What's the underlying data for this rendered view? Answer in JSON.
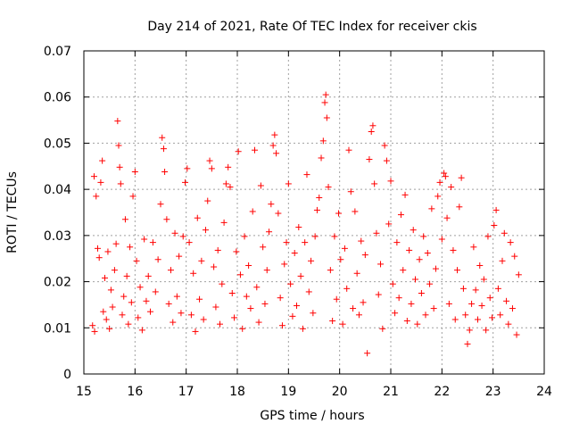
{
  "chart_data": {
    "type": "scatter",
    "title": "Day 214 of 2021, Rate Of TEC Index for receiver ckis",
    "xlabel": "GPS time / hours",
    "ylabel": "ROTI / TECUs",
    "xlim": [
      15,
      24
    ],
    "ylim": [
      0,
      0.07
    ],
    "xticks": [
      "15",
      "16",
      "17",
      "18",
      "19",
      "20",
      "21",
      "22",
      "23",
      "24"
    ],
    "yticks": [
      "0",
      "0.01",
      "0.02",
      "0.03",
      "0.04",
      "0.05",
      "0.06",
      "0.07"
    ],
    "grid": true,
    "marker": "+",
    "color": "#ff0000",
    "series": [
      {
        "points": [
          [
            15.17,
            0.0105
          ],
          [
            15.2,
            0.0428
          ],
          [
            15.21,
            0.0092
          ],
          [
            15.24,
            0.0385
          ],
          [
            15.27,
            0.0272
          ],
          [
            15.3,
            0.0252
          ],
          [
            15.33,
            0.0415
          ],
          [
            15.36,
            0.0462
          ],
          [
            15.38,
            0.0135
          ],
          [
            15.41,
            0.0208
          ],
          [
            15.44,
            0.0118
          ],
          [
            15.47,
            0.0265
          ],
          [
            15.5,
            0.0098
          ],
          [
            15.53,
            0.0182
          ],
          [
            15.56,
            0.0145
          ],
          [
            15.6,
            0.0225
          ],
          [
            15.63,
            0.0282
          ],
          [
            15.66,
            0.0548
          ],
          [
            15.68,
            0.0495
          ],
          [
            15.7,
            0.0448
          ],
          [
            15.72,
            0.0412
          ],
          [
            15.75,
            0.0128
          ],
          [
            15.78,
            0.0168
          ],
          [
            15.81,
            0.0335
          ],
          [
            15.84,
            0.0212
          ],
          [
            15.87,
            0.0108
          ],
          [
            15.9,
            0.0275
          ],
          [
            15.93,
            0.0155
          ],
          [
            15.96,
            0.0385
          ],
          [
            16.0,
            0.0438
          ],
          [
            16.03,
            0.0245
          ],
          [
            16.06,
            0.0122
          ],
          [
            16.1,
            0.0188
          ],
          [
            16.14,
            0.0095
          ],
          [
            16.18,
            0.0292
          ],
          [
            16.22,
            0.0158
          ],
          [
            16.26,
            0.0212
          ],
          [
            16.3,
            0.0135
          ],
          [
            16.35,
            0.0285
          ],
          [
            16.4,
            0.0178
          ],
          [
            16.45,
            0.0248
          ],
          [
            16.5,
            0.0368
          ],
          [
            16.53,
            0.0512
          ],
          [
            16.56,
            0.0488
          ],
          [
            16.58,
            0.0438
          ],
          [
            16.62,
            0.0335
          ],
          [
            16.66,
            0.0152
          ],
          [
            16.7,
            0.0225
          ],
          [
            16.74,
            0.0112
          ],
          [
            16.78,
            0.0305
          ],
          [
            16.82,
            0.0168
          ],
          [
            16.86,
            0.0255
          ],
          [
            16.9,
            0.0132
          ],
          [
            16.94,
            0.0298
          ],
          [
            16.98,
            0.0415
          ],
          [
            17.02,
            0.0445
          ],
          [
            17.06,
            0.0285
          ],
          [
            17.1,
            0.0128
          ],
          [
            17.14,
            0.0218
          ],
          [
            17.18,
            0.0092
          ],
          [
            17.22,
            0.0338
          ],
          [
            17.26,
            0.0162
          ],
          [
            17.3,
            0.0245
          ],
          [
            17.34,
            0.0118
          ],
          [
            17.38,
            0.0312
          ],
          [
            17.42,
            0.0375
          ],
          [
            17.46,
            0.0462
          ],
          [
            17.5,
            0.0445
          ],
          [
            17.54,
            0.0232
          ],
          [
            17.58,
            0.0145
          ],
          [
            17.62,
            0.0268
          ],
          [
            17.66,
            0.0108
          ],
          [
            17.7,
            0.0195
          ],
          [
            17.74,
            0.0328
          ],
          [
            17.78,
            0.0412
          ],
          [
            17.82,
            0.0448
          ],
          [
            17.86,
            0.0405
          ],
          [
            17.9,
            0.0175
          ],
          [
            17.94,
            0.0122
          ],
          [
            17.98,
            0.0265
          ],
          [
            18.02,
            0.0482
          ],
          [
            18.06,
            0.0215
          ],
          [
            18.1,
            0.0098
          ],
          [
            18.14,
            0.0298
          ],
          [
            18.18,
            0.0168
          ],
          [
            18.22,
            0.0235
          ],
          [
            18.26,
            0.0142
          ],
          [
            18.3,
            0.0352
          ],
          [
            18.34,
            0.0485
          ],
          [
            18.38,
            0.0188
          ],
          [
            18.42,
            0.0112
          ],
          [
            18.46,
            0.0408
          ],
          [
            18.5,
            0.0275
          ],
          [
            18.54,
            0.0152
          ],
          [
            18.58,
            0.0225
          ],
          [
            18.62,
            0.0308
          ],
          [
            18.66,
            0.0368
          ],
          [
            18.7,
            0.0495
          ],
          [
            18.73,
            0.0518
          ],
          [
            18.76,
            0.0478
          ],
          [
            18.8,
            0.0348
          ],
          [
            18.84,
            0.0165
          ],
          [
            18.88,
            0.0105
          ],
          [
            18.92,
            0.0238
          ],
          [
            18.96,
            0.0285
          ],
          [
            19.0,
            0.0412
          ],
          [
            19.04,
            0.0195
          ],
          [
            19.08,
            0.0125
          ],
          [
            19.12,
            0.0262
          ],
          [
            19.16,
            0.0148
          ],
          [
            19.2,
            0.0318
          ],
          [
            19.24,
            0.0212
          ],
          [
            19.28,
            0.0098
          ],
          [
            19.32,
            0.0285
          ],
          [
            19.36,
            0.0432
          ],
          [
            19.4,
            0.0178
          ],
          [
            19.44,
            0.0245
          ],
          [
            19.48,
            0.0132
          ],
          [
            19.52,
            0.0298
          ],
          [
            19.56,
            0.0355
          ],
          [
            19.6,
            0.0382
          ],
          [
            19.64,
            0.0468
          ],
          [
            19.68,
            0.0505
          ],
          [
            19.71,
            0.0588
          ],
          [
            19.73,
            0.0605
          ],
          [
            19.75,
            0.0555
          ],
          [
            19.78,
            0.0405
          ],
          [
            19.82,
            0.0225
          ],
          [
            19.86,
            0.0115
          ],
          [
            19.9,
            0.0298
          ],
          [
            19.94,
            0.0162
          ],
          [
            19.98,
            0.0348
          ],
          [
            20.02,
            0.0248
          ],
          [
            20.06,
            0.0108
          ],
          [
            20.1,
            0.0272
          ],
          [
            20.14,
            0.0185
          ],
          [
            20.18,
            0.0485
          ],
          [
            20.22,
            0.0395
          ],
          [
            20.26,
            0.0142
          ],
          [
            20.3,
            0.0352
          ],
          [
            20.34,
            0.0218
          ],
          [
            20.38,
            0.0128
          ],
          [
            20.42,
            0.0288
          ],
          [
            20.46,
            0.0155
          ],
          [
            20.5,
            0.0258
          ],
          [
            20.54,
            0.0045
          ],
          [
            20.58,
            0.0465
          ],
          [
            20.62,
            0.0525
          ],
          [
            20.65,
            0.0538
          ],
          [
            20.68,
            0.0412
          ],
          [
            20.72,
            0.0305
          ],
          [
            20.76,
            0.0172
          ],
          [
            20.8,
            0.0238
          ],
          [
            20.84,
            0.0098
          ],
          [
            20.88,
            0.0495
          ],
          [
            20.92,
            0.0462
          ],
          [
            20.96,
            0.0325
          ],
          [
            21.0,
            0.0418
          ],
          [
            21.04,
            0.0195
          ],
          [
            21.08,
            0.0132
          ],
          [
            21.12,
            0.0285
          ],
          [
            21.16,
            0.0165
          ],
          [
            21.2,
            0.0345
          ],
          [
            21.24,
            0.0225
          ],
          [
            21.28,
            0.0388
          ],
          [
            21.32,
            0.0115
          ],
          [
            21.36,
            0.0268
          ],
          [
            21.4,
            0.0152
          ],
          [
            21.44,
            0.0312
          ],
          [
            21.48,
            0.0205
          ],
          [
            21.52,
            0.0108
          ],
          [
            21.56,
            0.0248
          ],
          [
            21.6,
            0.0175
          ],
          [
            21.64,
            0.0298
          ],
          [
            21.68,
            0.0128
          ],
          [
            21.72,
            0.0262
          ],
          [
            21.76,
            0.0195
          ],
          [
            21.8,
            0.0358
          ],
          [
            21.84,
            0.0142
          ],
          [
            21.88,
            0.0228
          ],
          [
            21.92,
            0.0385
          ],
          [
            21.96,
            0.0415
          ],
          [
            22.0,
            0.0292
          ],
          [
            22.04,
            0.0435
          ],
          [
            22.07,
            0.0428
          ],
          [
            22.1,
            0.0338
          ],
          [
            22.14,
            0.0152
          ],
          [
            22.18,
            0.0405
          ],
          [
            22.22,
            0.0268
          ],
          [
            22.26,
            0.0118
          ],
          [
            22.3,
            0.0225
          ],
          [
            22.34,
            0.0362
          ],
          [
            22.38,
            0.0425
          ],
          [
            22.42,
            0.0185
          ],
          [
            22.46,
            0.0128
          ],
          [
            22.5,
            0.0065
          ],
          [
            22.54,
            0.0095
          ],
          [
            22.58,
            0.0152
          ],
          [
            22.62,
            0.0275
          ],
          [
            22.66,
            0.0182
          ],
          [
            22.7,
            0.0118
          ],
          [
            22.74,
            0.0235
          ],
          [
            22.78,
            0.0148
          ],
          [
            22.82,
            0.0205
          ],
          [
            22.86,
            0.0095
          ],
          [
            22.9,
            0.0298
          ],
          [
            22.94,
            0.0165
          ],
          [
            22.98,
            0.0122
          ],
          [
            23.02,
            0.0322
          ],
          [
            23.06,
            0.0355
          ],
          [
            23.1,
            0.0185
          ],
          [
            23.14,
            0.0128
          ],
          [
            23.18,
            0.0245
          ],
          [
            23.22,
            0.0305
          ],
          [
            23.26,
            0.0158
          ],
          [
            23.3,
            0.0108
          ],
          [
            23.34,
            0.0285
          ],
          [
            23.38,
            0.0142
          ],
          [
            23.42,
            0.0255
          ],
          [
            23.46,
            0.0085
          ],
          [
            23.5,
            0.0215
          ]
        ]
      }
    ]
  }
}
